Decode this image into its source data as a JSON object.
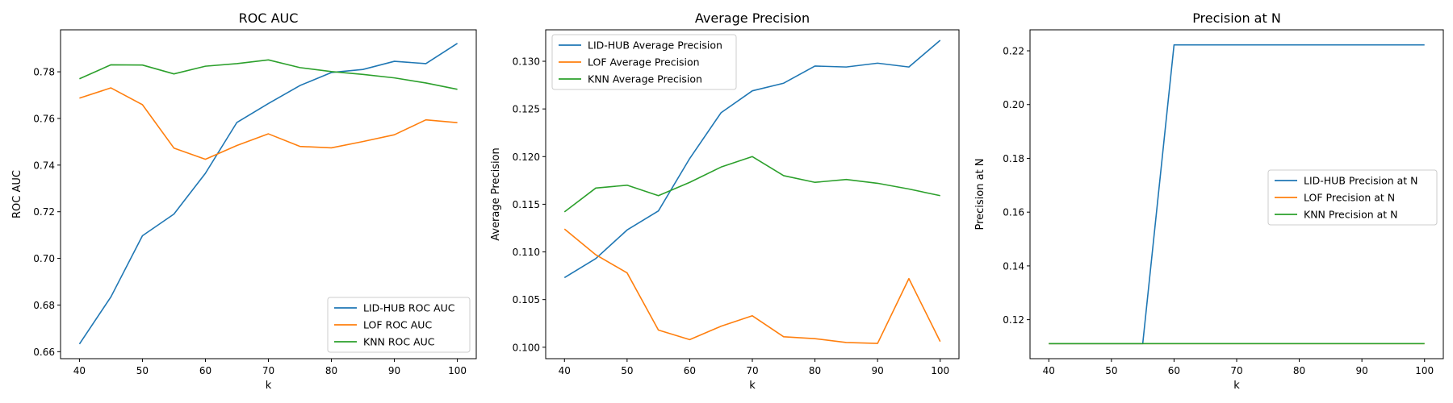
{
  "chart_data": [
    {
      "type": "line",
      "title": "ROC AUC",
      "xlabel": "k",
      "ylabel": "ROC AUC",
      "x": [
        40,
        45,
        50,
        55,
        60,
        65,
        70,
        75,
        80,
        85,
        90,
        95,
        100
      ],
      "xlim": [
        37,
        103
      ],
      "ylim": [
        0.657,
        0.798
      ],
      "xticks": [
        40,
        50,
        60,
        70,
        80,
        90,
        100
      ],
      "xtick_labels": [
        "40",
        "50",
        "60",
        "70",
        "80",
        "90",
        "100"
      ],
      "yticks": [
        0.66,
        0.68,
        0.7,
        0.72,
        0.74,
        0.76,
        0.78
      ],
      "ytick_labels": [
        "0.66",
        "0.68",
        "0.70",
        "0.72",
        "0.74",
        "0.76",
        "0.78"
      ],
      "legend_position": "lower-right",
      "series": [
        {
          "name": "LID-HUB ROC AUC",
          "color": "#1f77b4",
          "values": [
            0.6633,
            0.6835,
            0.7097,
            0.719,
            0.7365,
            0.7583,
            0.7664,
            0.7741,
            0.7797,
            0.781,
            0.7845,
            0.7835,
            0.7922
          ]
        },
        {
          "name": "LOF ROC AUC",
          "color": "#ff7f0e",
          "values": [
            0.7687,
            0.7731,
            0.7659,
            0.7473,
            0.7425,
            0.7484,
            0.7534,
            0.748,
            0.7474,
            0.7501,
            0.753,
            0.7594,
            0.7582
          ]
        },
        {
          "name": "KNN ROC AUC",
          "color": "#2ca02c",
          "values": [
            0.777,
            0.783,
            0.7829,
            0.7791,
            0.7824,
            0.7835,
            0.7851,
            0.7818,
            0.7801,
            0.7789,
            0.7774,
            0.7752,
            0.7725
          ]
        }
      ]
    },
    {
      "type": "line",
      "title": "Average Precision",
      "xlabel": "k",
      "ylabel": "Average Precision",
      "x": [
        40,
        45,
        50,
        55,
        60,
        65,
        70,
        75,
        80,
        85,
        90,
        95,
        100
      ],
      "xlim": [
        37,
        103
      ],
      "ylim": [
        0.0988,
        0.1333
      ],
      "xticks": [
        40,
        50,
        60,
        70,
        80,
        90,
        100
      ],
      "xtick_labels": [
        "40",
        "50",
        "60",
        "70",
        "80",
        "90",
        "100"
      ],
      "yticks": [
        0.1,
        0.105,
        0.11,
        0.115,
        0.12,
        0.125,
        0.13
      ],
      "ytick_labels": [
        "0.100",
        "0.105",
        "0.110",
        "0.115",
        "0.120",
        "0.125",
        "0.130"
      ],
      "legend_position": "upper-left",
      "series": [
        {
          "name": "LID-HUB Average Precision",
          "color": "#1f77b4",
          "values": [
            0.1073,
            0.1093,
            0.1123,
            0.1143,
            0.1198,
            0.1246,
            0.1269,
            0.1277,
            0.1295,
            0.1294,
            0.1298,
            0.1294,
            0.1322
          ]
        },
        {
          "name": "LOF Average Precision",
          "color": "#ff7f0e",
          "values": [
            0.1124,
            0.1097,
            0.1078,
            0.1018,
            0.1008,
            0.1022,
            0.1033,
            0.1011,
            0.1009,
            0.1005,
            0.1004,
            0.1072,
            0.1006
          ]
        },
        {
          "name": "KNN Average Precision",
          "color": "#2ca02c",
          "values": [
            0.1142,
            0.1167,
            0.117,
            0.1159,
            0.1173,
            0.1189,
            0.12,
            0.118,
            0.1173,
            0.1176,
            0.1172,
            0.1166,
            0.1159
          ]
        }
      ]
    },
    {
      "type": "line",
      "title": "Precision at N",
      "xlabel": "k",
      "ylabel": "Precision at N",
      "x": [
        40,
        45,
        50,
        55,
        60,
        65,
        70,
        75,
        80,
        85,
        90,
        95,
        100
      ],
      "xlim": [
        37,
        103
      ],
      "ylim": [
        0.1055,
        0.2278
      ],
      "xticks": [
        40,
        50,
        60,
        70,
        80,
        90,
        100
      ],
      "xtick_labels": [
        "40",
        "50",
        "60",
        "70",
        "80",
        "90",
        "100"
      ],
      "yticks": [
        0.12,
        0.14,
        0.16,
        0.18,
        0.2,
        0.22
      ],
      "ytick_labels": [
        "0.12",
        "0.14",
        "0.16",
        "0.18",
        "0.20",
        "0.22"
      ],
      "legend_position": "center-right",
      "series": [
        {
          "name": "LID-HUB Precision at N",
          "color": "#1f77b4",
          "values": [
            0.1111,
            0.1111,
            0.1111,
            0.1111,
            0.2222,
            0.2222,
            0.2222,
            0.2222,
            0.2222,
            0.2222,
            0.2222,
            0.2222,
            0.2222
          ]
        },
        {
          "name": "LOF Precision at N",
          "color": "#ff7f0e",
          "values": [
            0.1111,
            0.1111,
            0.1111,
            0.1111,
            0.1111,
            0.1111,
            0.1111,
            0.1111,
            0.1111,
            0.1111,
            0.1111,
            0.1111,
            0.1111
          ]
        },
        {
          "name": "KNN Precision at N",
          "color": "#2ca02c",
          "values": [
            0.1111,
            0.1111,
            0.1111,
            0.1111,
            0.1111,
            0.1111,
            0.1111,
            0.1111,
            0.1111,
            0.1111,
            0.1111,
            0.1111,
            0.1111
          ]
        }
      ]
    }
  ]
}
